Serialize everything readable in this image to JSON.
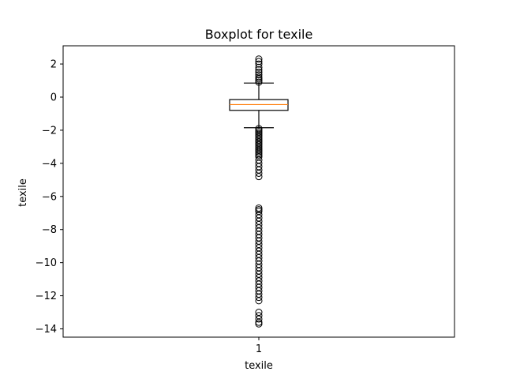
{
  "chart_data": {
    "type": "box",
    "title": "Boxplot for texile",
    "xlabel": "texile",
    "ylabel": "texile",
    "categories": [
      "1"
    ],
    "ylim": [
      -14.5,
      3.1
    ],
    "yticks": [
      2,
      0,
      -2,
      -4,
      -6,
      -8,
      -10,
      -12,
      -14
    ],
    "yticklabels": [
      "2",
      "0",
      "−2",
      "−4",
      "−6",
      "−8",
      "−10",
      "−12",
      "−14"
    ],
    "grid": false,
    "legend": "none",
    "box": {
      "whisker_low": -1.85,
      "q1": -0.8,
      "median": -0.45,
      "q3": -0.15,
      "whisker_high": 0.85
    },
    "outliers_high": [
      0.9,
      1.0,
      1.1,
      1.2,
      1.35,
      1.5,
      1.65,
      1.8,
      2.0,
      2.15,
      2.3
    ],
    "outliers_low": [
      -1.9,
      -2.0,
      -2.1,
      -2.2,
      -2.3,
      -2.4,
      -2.5,
      -2.6,
      -2.7,
      -2.8,
      -2.9,
      -3.0,
      -3.1,
      -3.2,
      -3.3,
      -3.4,
      -3.5,
      -3.6,
      -3.8,
      -4.0,
      -4.2,
      -4.4,
      -4.6,
      -4.8,
      -6.7,
      -6.8,
      -6.9,
      -7.1,
      -7.3,
      -7.5,
      -7.7,
      -7.9,
      -8.1,
      -8.3,
      -8.5,
      -8.7,
      -8.9,
      -9.1,
      -9.3,
      -9.5,
      -9.7,
      -9.9,
      -10.1,
      -10.3,
      -10.5,
      -10.7,
      -10.9,
      -11.1,
      -11.3,
      -11.5,
      -11.7,
      -11.9,
      -12.1,
      -12.3,
      -13.0,
      -13.2,
      -13.4,
      -13.6,
      -13.7
    ],
    "colors": {
      "box": "#000000",
      "median": "#ff7f0e",
      "outlier": "#000000"
    }
  }
}
